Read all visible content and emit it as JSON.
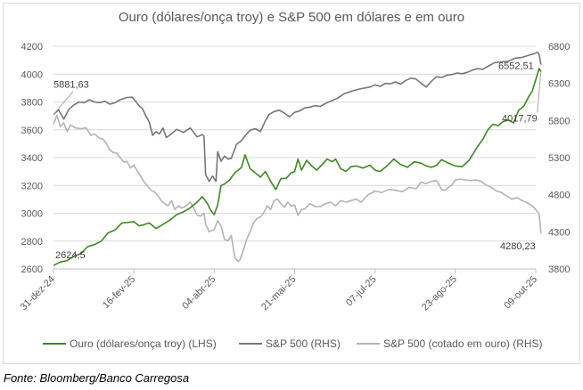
{
  "chart_data": {
    "type": "line",
    "title": "Ouro (dólares/onça troy) e S&P 500 em dólares e em ouro",
    "source": "Fonte: Bloomberg/Banco Carregosa",
    "x_tick_labels": [
      "31-dez-24",
      "16-fev-25",
      "04-abr-25",
      "21-mai-25",
      "07-jul-25",
      "23-ago-25",
      "09-out-25"
    ],
    "x_ticks_day": [
      0,
      47,
      94,
      141,
      188,
      235,
      282
    ],
    "y_left": {
      "ticks": [
        2600,
        2800,
        3000,
        3200,
        3400,
        3600,
        3800,
        4000,
        4200
      ],
      "range": [
        2600,
        4200
      ]
    },
    "y_right": {
      "ticks": [
        3800,
        4300,
        4800,
        5300,
        5800,
        6300,
        6800
      ],
      "range": [
        3800,
        6800
      ]
    },
    "annotations": [
      {
        "text": "2624,5",
        "series": "gold"
      },
      {
        "text": "5881,63",
        "series": "spx"
      },
      {
        "text": "6552,51",
        "series": "spx"
      },
      {
        "text": "4017,79",
        "series": "gold"
      },
      {
        "text": "4280,23",
        "series": "spx_gold"
      }
    ],
    "colors": {
      "gold": "#3a8a1e",
      "spx": "#767676",
      "spx_gold": "#b3b3b3"
    },
    "series": [
      {
        "key": "gold",
        "name": "Ouro (dólares/onça troy) (LHS)",
        "axis": "left",
        "points": [
          [
            0,
            2624.5
          ],
          [
            4,
            2650
          ],
          [
            8,
            2660
          ],
          [
            12,
            2690
          ],
          [
            16,
            2710
          ],
          [
            20,
            2760
          ],
          [
            24,
            2775
          ],
          [
            28,
            2800
          ],
          [
            32,
            2860
          ],
          [
            36,
            2880
          ],
          [
            40,
            2930
          ],
          [
            44,
            2935
          ],
          [
            47,
            2940
          ],
          [
            50,
            2910
          ],
          [
            52,
            2915
          ],
          [
            56,
            2930
          ],
          [
            60,
            2890
          ],
          [
            64,
            2920
          ],
          [
            68,
            2950
          ],
          [
            72,
            2990
          ],
          [
            76,
            3010
          ],
          [
            80,
            3040
          ],
          [
            84,
            3080
          ],
          [
            87,
            3120
          ],
          [
            90,
            3070
          ],
          [
            92,
            3020
          ],
          [
            94,
            2990
          ],
          [
            96,
            3060
          ],
          [
            98,
            3200
          ],
          [
            100,
            3210
          ],
          [
            103,
            3240
          ],
          [
            106,
            3290
          ],
          [
            110,
            3330
          ],
          [
            112,
            3420
          ],
          [
            115,
            3320
          ],
          [
            118,
            3290
          ],
          [
            121,
            3260
          ],
          [
            124,
            3300
          ],
          [
            127,
            3230
          ],
          [
            130,
            3170
          ],
          [
            133,
            3250
          ],
          [
            136,
            3250
          ],
          [
            139,
            3290
          ],
          [
            141,
            3300
          ],
          [
            143,
            3390
          ],
          [
            145,
            3310
          ],
          [
            148,
            3380
          ],
          [
            151,
            3340
          ],
          [
            154,
            3310
          ],
          [
            157,
            3350
          ],
          [
            160,
            3390
          ],
          [
            163,
            3370
          ],
          [
            165,
            3390
          ],
          [
            168,
            3320
          ],
          [
            171,
            3300
          ],
          [
            174,
            3335
          ],
          [
            177,
            3340
          ],
          [
            181,
            3325
          ],
          [
            185,
            3345
          ],
          [
            188,
            3310
          ],
          [
            191,
            3300
          ],
          [
            195,
            3340
          ],
          [
            199,
            3390
          ],
          [
            203,
            3350
          ],
          [
            207,
            3330
          ],
          [
            211,
            3370
          ],
          [
            215,
            3360
          ],
          [
            218,
            3340
          ],
          [
            221,
            3330
          ],
          [
            224,
            3345
          ],
          [
            227,
            3385
          ],
          [
            231,
            3360
          ],
          [
            235,
            3340
          ],
          [
            239,
            3335
          ],
          [
            243,
            3380
          ],
          [
            245,
            3420
          ],
          [
            248,
            3480
          ],
          [
            251,
            3530
          ],
          [
            254,
            3600
          ],
          [
            257,
            3640
          ],
          [
            260,
            3630
          ],
          [
            263,
            3660
          ],
          [
            266,
            3670
          ],
          [
            269,
            3650
          ],
          [
            272,
            3740
          ],
          [
            275,
            3770
          ],
          [
            278,
            3840
          ],
          [
            280,
            3880
          ],
          [
            282,
            3960
          ],
          [
            284,
            4040
          ],
          [
            285,
            4017.79
          ]
        ]
      },
      {
        "key": "spx",
        "name": "S&P 500 (RHS)",
        "axis": "right",
        "points": [
          [
            0,
            5881.63
          ],
          [
            3,
            5942
          ],
          [
            6,
            5820
          ],
          [
            9,
            5950
          ],
          [
            12,
            6010
          ],
          [
            15,
            6050
          ],
          [
            18,
            6040
          ],
          [
            21,
            6080
          ],
          [
            24,
            6050
          ],
          [
            27,
            6040
          ],
          [
            30,
            6060
          ],
          [
            33,
            6020
          ],
          [
            36,
            6040
          ],
          [
            39,
            6080
          ],
          [
            43,
            6110
          ],
          [
            46,
            6114
          ],
          [
            48,
            6060
          ],
          [
            50,
            6000
          ],
          [
            52,
            5960
          ],
          [
            54,
            5860
          ],
          [
            56,
            5780
          ],
          [
            58,
            5600
          ],
          [
            60,
            5650
          ],
          [
            62,
            5620
          ],
          [
            64,
            5700
          ],
          [
            66,
            5570
          ],
          [
            69,
            5620
          ],
          [
            72,
            5680
          ],
          [
            76,
            5640
          ],
          [
            80,
            5700
          ],
          [
            84,
            5580
          ],
          [
            87,
            5610
          ],
          [
            88,
            5590
          ],
          [
            89,
            5070
          ],
          [
            91,
            4980
          ],
          [
            93,
            5050
          ],
          [
            95,
            4980
          ],
          [
            96,
            5380
          ],
          [
            98,
            5250
          ],
          [
            100,
            5320
          ],
          [
            102,
            5280
          ],
          [
            104,
            5290
          ],
          [
            107,
            5480
          ],
          [
            110,
            5530
          ],
          [
            113,
            5620
          ],
          [
            115,
            5670
          ],
          [
            118,
            5690
          ],
          [
            121,
            5650
          ],
          [
            124,
            5800
          ],
          [
            126,
            5880
          ],
          [
            129,
            5920
          ],
          [
            132,
            5940
          ],
          [
            135,
            5900
          ],
          [
            138,
            5850
          ],
          [
            141,
            5910
          ],
          [
            144,
            5930
          ],
          [
            147,
            5970
          ],
          [
            150,
            5980
          ],
          [
            153,
            6000
          ],
          [
            156,
            5990
          ],
          [
            159,
            6030
          ],
          [
            162,
            6060
          ],
          [
            166,
            6100
          ],
          [
            170,
            6160
          ],
          [
            175,
            6200
          ],
          [
            180,
            6230
          ],
          [
            185,
            6250
          ],
          [
            188,
            6280
          ],
          [
            191,
            6260
          ],
          [
            194,
            6300
          ],
          [
            197,
            6295
          ],
          [
            200,
            6320
          ],
          [
            203,
            6290
          ],
          [
            206,
            6340
          ],
          [
            209,
            6370
          ],
          [
            212,
            6360
          ],
          [
            215,
            6300
          ],
          [
            218,
            6250
          ],
          [
            221,
            6330
          ],
          [
            224,
            6390
          ],
          [
            227,
            6380
          ],
          [
            230,
            6410
          ],
          [
            233,
            6420
          ],
          [
            236,
            6440
          ],
          [
            239,
            6430
          ],
          [
            242,
            6450
          ],
          [
            245,
            6480
          ],
          [
            248,
            6500
          ],
          [
            251,
            6490
          ],
          [
            254,
            6530
          ],
          [
            258,
            6580
          ],
          [
            262,
            6590
          ],
          [
            266,
            6600
          ],
          [
            270,
            6640
          ],
          [
            274,
            6650
          ],
          [
            278,
            6680
          ],
          [
            281,
            6700
          ],
          [
            283,
            6720
          ],
          [
            284,
            6690
          ],
          [
            285,
            6552.51
          ]
        ]
      },
      {
        "key": "spx_gold",
        "name": "S&P 500 (cotado em ouro) (RHS)",
        "axis": "right",
        "points": [
          [
            0,
            5750
          ],
          [
            2,
            5870
          ],
          [
            4,
            5720
          ],
          [
            6,
            5770
          ],
          [
            8,
            5650
          ],
          [
            10,
            5740
          ],
          [
            13,
            5700
          ],
          [
            16,
            5690
          ],
          [
            19,
            5700
          ],
          [
            22,
            5600
          ],
          [
            24,
            5620
          ],
          [
            27,
            5560
          ],
          [
            29,
            5550
          ],
          [
            31,
            5490
          ],
          [
            33,
            5400
          ],
          [
            35,
            5370
          ],
          [
            37,
            5360
          ],
          [
            39,
            5300
          ],
          [
            41,
            5240
          ],
          [
            43,
            5250
          ],
          [
            45,
            5160
          ],
          [
            47,
            5200
          ],
          [
            49,
            5120
          ],
          [
            51,
            5050
          ],
          [
            53,
            4970
          ],
          [
            55,
            4920
          ],
          [
            57,
            4860
          ],
          [
            59,
            4840
          ],
          [
            61,
            4790
          ],
          [
            63,
            4720
          ],
          [
            65,
            4680
          ],
          [
            67,
            4650
          ],
          [
            69,
            4720
          ],
          [
            71,
            4600
          ],
          [
            73,
            4650
          ],
          [
            75,
            4620
          ],
          [
            77,
            4640
          ],
          [
            80,
            4700
          ],
          [
            82,
            4620
          ],
          [
            84,
            4530
          ],
          [
            86,
            4510
          ],
          [
            88,
            4550
          ],
          [
            89,
            4400
          ],
          [
            91,
            4300
          ],
          [
            93,
            4320
          ],
          [
            94,
            4330
          ],
          [
            96,
            4450
          ],
          [
            98,
            4380
          ],
          [
            100,
            4200
          ],
          [
            102,
            4180
          ],
          [
            104,
            4250
          ],
          [
            106,
            3950
          ],
          [
            108,
            3900
          ],
          [
            109,
            3920
          ],
          [
            111,
            4050
          ],
          [
            113,
            4200
          ],
          [
            115,
            4300
          ],
          [
            117,
            4420
          ],
          [
            119,
            4480
          ],
          [
            121,
            4500
          ],
          [
            123,
            4560
          ],
          [
            125,
            4650
          ],
          [
            127,
            4600
          ],
          [
            129,
            4720
          ],
          [
            131,
            4740
          ],
          [
            133,
            4680
          ],
          [
            135,
            4630
          ],
          [
            137,
            4700
          ],
          [
            139,
            4650
          ],
          [
            141,
            4660
          ],
          [
            143,
            4520
          ],
          [
            145,
            4600
          ],
          [
            147,
            4610
          ],
          [
            150,
            4680
          ],
          [
            153,
            4640
          ],
          [
            156,
            4640
          ],
          [
            159,
            4680
          ],
          [
            162,
            4700
          ],
          [
            165,
            4650
          ],
          [
            168,
            4720
          ],
          [
            171,
            4700
          ],
          [
            174,
            4720
          ],
          [
            177,
            4740
          ],
          [
            180,
            4700
          ],
          [
            184,
            4800
          ],
          [
            188,
            4850
          ],
          [
            192,
            4830
          ],
          [
            196,
            4870
          ],
          [
            200,
            4860
          ],
          [
            204,
            4840
          ],
          [
            208,
            4900
          ],
          [
            212,
            4880
          ],
          [
            215,
            4970
          ],
          [
            218,
            4950
          ],
          [
            221,
            4980
          ],
          [
            224,
            4990
          ],
          [
            227,
            4870
          ],
          [
            229,
            4860
          ],
          [
            231,
            4900
          ],
          [
            233,
            4930
          ],
          [
            235,
            5000
          ],
          [
            238,
            5010
          ],
          [
            241,
            5000
          ],
          [
            244,
            4990
          ],
          [
            247,
            5000
          ],
          [
            250,
            4980
          ],
          [
            253,
            4930
          ],
          [
            256,
            4900
          ],
          [
            259,
            4850
          ],
          [
            262,
            4830
          ],
          [
            265,
            4780
          ],
          [
            268,
            4740
          ],
          [
            271,
            4760
          ],
          [
            274,
            4720
          ],
          [
            277,
            4690
          ],
          [
            280,
            4650
          ],
          [
            282,
            4600
          ],
          [
            284,
            4540
          ],
          [
            285,
            4280.23
          ]
        ]
      }
    ]
  }
}
